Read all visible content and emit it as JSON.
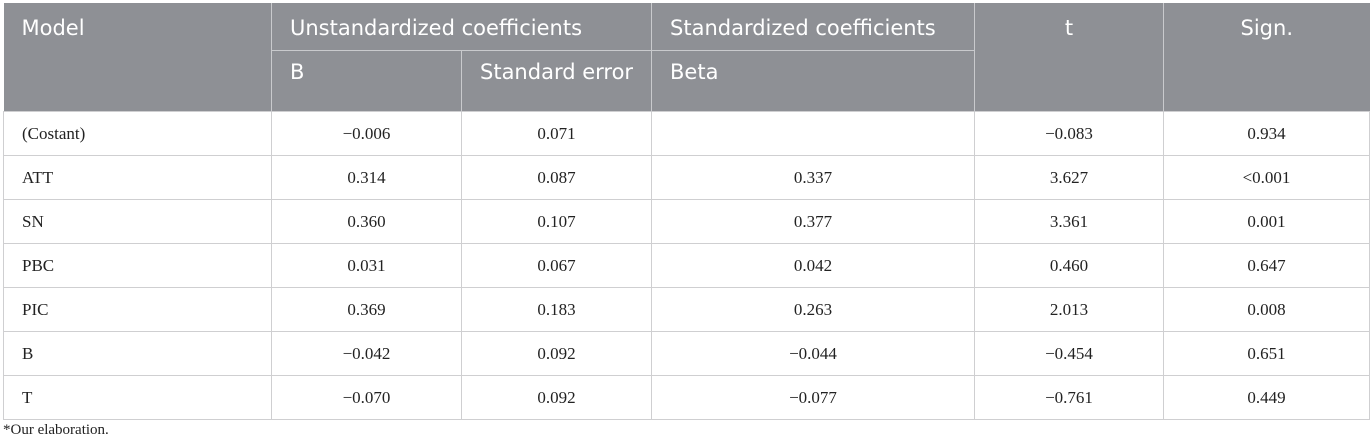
{
  "table": {
    "header": {
      "model": "Model",
      "unstandardized": "Unstandardized coefficients",
      "standardized": "Standardized coefficients",
      "t": "t",
      "sign": "Sign.",
      "b": "B",
      "standard_error": "Standard error",
      "beta": "Beta"
    },
    "rows": [
      {
        "label": "(Costant)",
        "b": "−0.006",
        "se": "0.071",
        "beta": "",
        "t": "−0.083",
        "sign": "0.934"
      },
      {
        "label": "ATT",
        "b": "0.314",
        "se": "0.087",
        "beta": "0.337",
        "t": "3.627",
        "sign": "<0.001"
      },
      {
        "label": "SN",
        "b": "0.360",
        "se": "0.107",
        "beta": "0.377",
        "t": "3.361",
        "sign": "0.001"
      },
      {
        "label": "PBC",
        "b": "0.031",
        "se": "0.067",
        "beta": "0.042",
        "t": "0.460",
        "sign": "0.647"
      },
      {
        "label": "PIC",
        "b": "0.369",
        "se": "0.183",
        "beta": "0.263",
        "t": "2.013",
        "sign": "0.008"
      },
      {
        "label": "B",
        "b": "−0.042",
        "se": "0.092",
        "beta": "−0.044",
        "t": "−0.454",
        "sign": "0.651"
      },
      {
        "label": "T",
        "b": "−0.070",
        "se": "0.092",
        "beta": "−0.077",
        "t": "−0.761",
        "sign": "0.449"
      }
    ]
  },
  "footnote": "*Our elaboration."
}
